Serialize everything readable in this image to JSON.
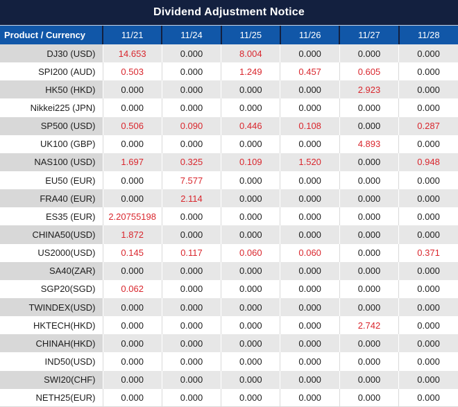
{
  "title": "Dividend Adjustment Notice",
  "colors": {
    "navy": "#13203f",
    "header-blue": "#1157a8",
    "gray-product": "#d8d8d8",
    "gray-value": "#e7e7e7",
    "grid-light": "#d9d9d9",
    "red": "#d9262d",
    "text-dark": "#1c1c1c"
  },
  "table": {
    "product_header": "Product / Currency",
    "date_columns": [
      "11/21",
      "11/24",
      "11/25",
      "11/26",
      "11/27",
      "11/28"
    ],
    "rows": [
      {
        "product": "DJ30 (USD)",
        "values": [
          "14.653",
          "0.000",
          "8.004",
          "0.000",
          "0.000",
          "0.000"
        ]
      },
      {
        "product": "SPI200 (AUD)",
        "values": [
          "0.503",
          "0.000",
          "1.249",
          "0.457",
          "0.605",
          "0.000"
        ]
      },
      {
        "product": "HK50 (HKD)",
        "values": [
          "0.000",
          "0.000",
          "0.000",
          "0.000",
          "2.923",
          "0.000"
        ]
      },
      {
        "product": "Nikkei225 (JPN)",
        "values": [
          "0.000",
          "0.000",
          "0.000",
          "0.000",
          "0.000",
          "0.000"
        ]
      },
      {
        "product": "SP500 (USD)",
        "values": [
          "0.506",
          "0.090",
          "0.446",
          "0.108",
          "0.000",
          "0.287"
        ]
      },
      {
        "product": "UK100 (GBP)",
        "values": [
          "0.000",
          "0.000",
          "0.000",
          "0.000",
          "4.893",
          "0.000"
        ]
      },
      {
        "product": "NAS100 (USD)",
        "values": [
          "1.697",
          "0.325",
          "0.109",
          "1.520",
          "0.000",
          "0.948"
        ]
      },
      {
        "product": "EU50 (EUR)",
        "values": [
          "0.000",
          "7.577",
          "0.000",
          "0.000",
          "0.000",
          "0.000"
        ]
      },
      {
        "product": "FRA40 (EUR)",
        "values": [
          "0.000",
          "2.114",
          "0.000",
          "0.000",
          "0.000",
          "0.000"
        ]
      },
      {
        "product": "ES35 (EUR)",
        "values": [
          "2.20755198",
          "0.000",
          "0.000",
          "0.000",
          "0.000",
          "0.000"
        ]
      },
      {
        "product": "CHINA50(USD)",
        "values": [
          "1.872",
          "0.000",
          "0.000",
          "0.000",
          "0.000",
          "0.000"
        ]
      },
      {
        "product": "US2000(USD)",
        "values": [
          "0.145",
          "0.117",
          "0.060",
          "0.060",
          "0.000",
          "0.371"
        ]
      },
      {
        "product": "SA40(ZAR)",
        "values": [
          "0.000",
          "0.000",
          "0.000",
          "0.000",
          "0.000",
          "0.000"
        ]
      },
      {
        "product": "SGP20(SGD)",
        "values": [
          "0.062",
          "0.000",
          "0.000",
          "0.000",
          "0.000",
          "0.000"
        ]
      },
      {
        "product": "TWINDEX(USD)",
        "values": [
          "0.000",
          "0.000",
          "0.000",
          "0.000",
          "0.000",
          "0.000"
        ]
      },
      {
        "product": "HKTECH(HKD)",
        "values": [
          "0.000",
          "0.000",
          "0.000",
          "0.000",
          "2.742",
          "0.000"
        ]
      },
      {
        "product": "CHINAH(HKD)",
        "values": [
          "0.000",
          "0.000",
          "0.000",
          "0.000",
          "0.000",
          "0.000"
        ]
      },
      {
        "product": "IND50(USD)",
        "values": [
          "0.000",
          "0.000",
          "0.000",
          "0.000",
          "0.000",
          "0.000"
        ]
      },
      {
        "product": "SWI20(CHF)",
        "values": [
          "0.000",
          "0.000",
          "0.000",
          "0.000",
          "0.000",
          "0.000"
        ]
      },
      {
        "product": "NETH25(EUR)",
        "values": [
          "0.000",
          "0.000",
          "0.000",
          "0.000",
          "0.000",
          "0.000"
        ]
      }
    ]
  }
}
